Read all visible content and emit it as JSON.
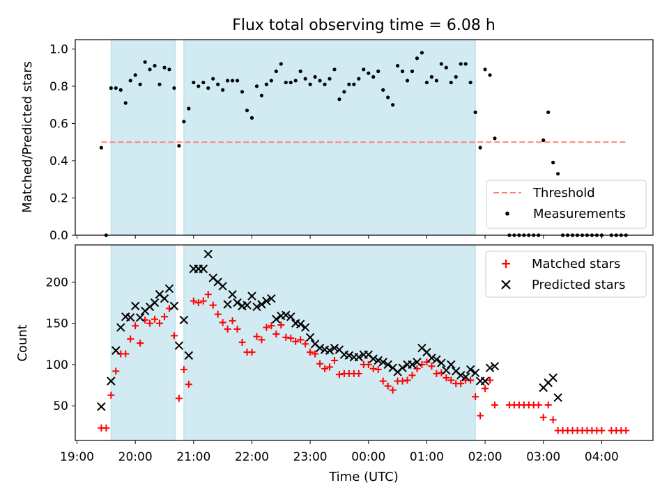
{
  "title": "Flux total observing time = 6.08 h",
  "colors": {
    "shade": "#add8e6",
    "threshold": "#ff7f7f",
    "matched": "#ff0000",
    "predicted": "#000000",
    "measurement": "#000000"
  },
  "chart_data": [
    {
      "type": "scatter",
      "ylabel": "Matched/Predicted stars",
      "ylim": [
        0,
        1.05
      ],
      "yticks": [
        "0.0",
        "0.2",
        "0.4",
        "0.6",
        "0.8",
        "1.0"
      ],
      "xlim_hours": [
        18.97,
        28.88
      ],
      "shaded_intervals": [
        [
          "19:35",
          "20:41"
        ],
        [
          "20:50",
          "01:50"
        ]
      ],
      "grid": false,
      "legend_position": "lower right",
      "legend": [
        "Threshold",
        "Measurements"
      ],
      "threshold": {
        "name": "Threshold",
        "value": 0.5,
        "x_range": [
          "19:25",
          "04:25"
        ]
      },
      "series": [
        {
          "name": "Measurements",
          "x": [
            "19:25",
            "19:30",
            "19:35",
            "19:40",
            "19:45",
            "19:50",
            "19:55",
            "20:00",
            "20:05",
            "20:10",
            "20:15",
            "20:20",
            "20:25",
            "20:30",
            "20:35",
            "20:40",
            "20:45",
            "20:50",
            "20:55",
            "21:00",
            "21:05",
            "21:10",
            "21:15",
            "21:20",
            "21:25",
            "21:30",
            "21:35",
            "21:40",
            "21:45",
            "21:50",
            "21:55",
            "22:00",
            "22:05",
            "22:10",
            "22:15",
            "22:20",
            "22:25",
            "22:30",
            "22:35",
            "22:40",
            "22:45",
            "22:50",
            "22:55",
            "23:00",
            "23:05",
            "23:10",
            "23:15",
            "23:20",
            "23:25",
            "23:30",
            "23:35",
            "23:40",
            "23:45",
            "23:50",
            "23:55",
            "00:00",
            "00:05",
            "00:10",
            "00:15",
            "00:20",
            "00:25",
            "00:30",
            "00:35",
            "00:40",
            "00:45",
            "00:50",
            "00:55",
            "01:00",
            "01:05",
            "01:10",
            "01:15",
            "01:20",
            "01:25",
            "01:30",
            "01:35",
            "01:40",
            "01:45",
            "01:50",
            "01:55",
            "02:00",
            "02:05",
            "02:10",
            "02:25",
            "02:30",
            "02:35",
            "02:40",
            "02:45",
            "02:50",
            "02:55",
            "03:00",
            "03:05",
            "03:10",
            "03:15",
            "03:20",
            "03:25",
            "03:30",
            "03:35",
            "03:40",
            "03:45",
            "03:50",
            "03:55",
            "04:00",
            "04:10",
            "04:15",
            "04:20",
            "04:25"
          ],
          "y": [
            0.47,
            0.0,
            0.79,
            0.79,
            0.78,
            0.71,
            0.83,
            0.86,
            0.81,
            0.93,
            0.89,
            0.91,
            0.81,
            0.9,
            0.89,
            0.79,
            0.48,
            0.61,
            0.68,
            0.82,
            0.8,
            0.82,
            0.79,
            0.84,
            0.81,
            0.78,
            0.83,
            0.83,
            0.83,
            0.77,
            0.67,
            0.63,
            0.8,
            0.75,
            0.81,
            0.83,
            0.88,
            0.92,
            0.82,
            0.82,
            0.83,
            0.88,
            0.84,
            0.81,
            0.85,
            0.83,
            0.81,
            0.84,
            0.89,
            0.73,
            0.77,
            0.81,
            0.81,
            0.84,
            0.89,
            0.87,
            0.85,
            0.88,
            0.78,
            0.74,
            0.7,
            0.91,
            0.88,
            0.83,
            0.88,
            0.95,
            0.98,
            0.82,
            0.85,
            0.83,
            0.92,
            0.9,
            0.82,
            0.85,
            0.92,
            0.92,
            0.82,
            0.66,
            0.47,
            0.89,
            0.86,
            0.52,
            0.0,
            0.0,
            0.0,
            0.0,
            0.0,
            0.0,
            0.0,
            0.51,
            0.66,
            0.39,
            0.33,
            0.0,
            0.0,
            0.0,
            0.0,
            0.0,
            0.0,
            0.0,
            0.0,
            0.0,
            0.0,
            0.0,
            0.0,
            0.0
          ]
        }
      ]
    },
    {
      "type": "scatter",
      "title": "",
      "xlabel": "Time (UTC)",
      "ylabel": "Count",
      "ylim": [
        8,
        245
      ],
      "yticks": [
        "50",
        "100",
        "150",
        "200"
      ],
      "xlim_hours": [
        18.97,
        28.88
      ],
      "xticks": [
        "19:00",
        "20:00",
        "21:00",
        "22:00",
        "23:00",
        "00:00",
        "01:00",
        "02:00",
        "03:00",
        "04:00"
      ],
      "shaded_intervals": [
        [
          "19:35",
          "20:41"
        ],
        [
          "20:50",
          "01:50"
        ]
      ],
      "grid": false,
      "legend_position": "upper right",
      "legend": [
        "Matched stars",
        "Predicted stars"
      ],
      "series": [
        {
          "name": "Matched stars",
          "marker": "+",
          "x": [
            "19:25",
            "19:30",
            "19:35",
            "19:40",
            "19:45",
            "19:50",
            "19:55",
            "20:00",
            "20:05",
            "20:10",
            "20:15",
            "20:20",
            "20:25",
            "20:30",
            "20:35",
            "20:40",
            "20:45",
            "20:50",
            "20:55",
            "21:00",
            "21:05",
            "21:10",
            "21:15",
            "21:20",
            "21:25",
            "21:30",
            "21:35",
            "21:40",
            "21:45",
            "21:50",
            "21:55",
            "22:00",
            "22:05",
            "22:10",
            "22:15",
            "22:20",
            "22:25",
            "22:30",
            "22:35",
            "22:40",
            "22:45",
            "22:50",
            "22:55",
            "23:00",
            "23:05",
            "23:10",
            "23:15",
            "23:20",
            "23:25",
            "23:30",
            "23:35",
            "23:40",
            "23:45",
            "23:50",
            "23:55",
            "00:00",
            "00:05",
            "00:10",
            "00:15",
            "00:20",
            "00:25",
            "00:30",
            "00:35",
            "00:40",
            "00:45",
            "00:50",
            "00:55",
            "01:00",
            "01:05",
            "01:10",
            "01:15",
            "01:20",
            "01:25",
            "01:30",
            "01:35",
            "01:40",
            "01:45",
            "01:50",
            "01:55",
            "02:00",
            "02:05",
            "02:10",
            "02:25",
            "02:30",
            "02:35",
            "02:40",
            "02:45",
            "02:50",
            "02:55",
            "03:00",
            "03:05",
            "03:10",
            "03:15",
            "03:20",
            "03:25",
            "03:30",
            "03:35",
            "03:40",
            "03:45",
            "03:50",
            "03:55",
            "04:00",
            "04:10",
            "04:15",
            "04:20",
            "04:25"
          ],
          "y": [
            23,
            23,
            63,
            92,
            113,
            113,
            131,
            147,
            126,
            154,
            150,
            155,
            150,
            158,
            168,
            135,
            59,
            94,
            76,
            177,
            175,
            177,
            185,
            172,
            161,
            151,
            143,
            153,
            143,
            127,
            115,
            115,
            134,
            130,
            145,
            147,
            137,
            148,
            133,
            132,
            128,
            130,
            125,
            115,
            113,
            101,
            95,
            97,
            105,
            88,
            89,
            89,
            89,
            89,
            100,
            100,
            95,
            94,
            80,
            74,
            69,
            80,
            80,
            81,
            87,
            95,
            100,
            103,
            98,
            89,
            90,
            84,
            81,
            77,
            77,
            81,
            81,
            61,
            38,
            71,
            81,
            51,
            51,
            51,
            51,
            51,
            51,
            51,
            51,
            36,
            51,
            33,
            20,
            20,
            20,
            20,
            20,
            20,
            20,
            20,
            20,
            20,
            20,
            20,
            20,
            20
          ]
        },
        {
          "name": "Predicted stars",
          "marker": "x",
          "x": [
            "19:25",
            "19:35",
            "19:40",
            "19:45",
            "19:50",
            "19:55",
            "20:00",
            "20:05",
            "20:10",
            "20:15",
            "20:20",
            "20:25",
            "20:30",
            "20:35",
            "20:40",
            "20:45",
            "20:50",
            "20:55",
            "21:00",
            "21:05",
            "21:10",
            "21:15",
            "21:20",
            "21:25",
            "21:30",
            "21:35",
            "21:40",
            "21:45",
            "21:50",
            "21:55",
            "22:00",
            "22:05",
            "22:10",
            "22:15",
            "22:20",
            "22:25",
            "22:30",
            "22:35",
            "22:40",
            "22:45",
            "22:50",
            "22:55",
            "23:00",
            "23:05",
            "23:10",
            "23:15",
            "23:20",
            "23:25",
            "23:30",
            "23:35",
            "23:40",
            "23:45",
            "23:50",
            "23:55",
            "00:00",
            "00:05",
            "00:10",
            "00:15",
            "00:20",
            "00:25",
            "00:30",
            "00:35",
            "00:40",
            "00:45",
            "00:50",
            "00:55",
            "01:00",
            "01:05",
            "01:10",
            "01:15",
            "01:20",
            "01:25",
            "01:30",
            "01:35",
            "01:40",
            "01:45",
            "01:50",
            "01:55",
            "02:00",
            "02:05",
            "02:10",
            "03:00",
            "03:05",
            "03:10",
            "03:15"
          ],
          "y": [
            49,
            80,
            117,
            145,
            158,
            157,
            171,
            157,
            165,
            170,
            175,
            185,
            180,
            192,
            171,
            123,
            154,
            111,
            216,
            216,
            216,
            234,
            205,
            200,
            195,
            173,
            185,
            175,
            171,
            172,
            183,
            170,
            173,
            177,
            180,
            155,
            159,
            160,
            158,
            150,
            149,
            145,
            133,
            125,
            120,
            118,
            117,
            120,
            118,
            112,
            111,
            109,
            109,
            112,
            112,
            107,
            105,
            103,
            100,
            96,
            91,
            96,
            100,
            100,
            103,
            120,
            115,
            108,
            106,
            102,
            93,
            100,
            92,
            87,
            85,
            94,
            90,
            80,
            80,
            96,
            98,
            72,
            78,
            84,
            60
          ]
        }
      ]
    }
  ]
}
